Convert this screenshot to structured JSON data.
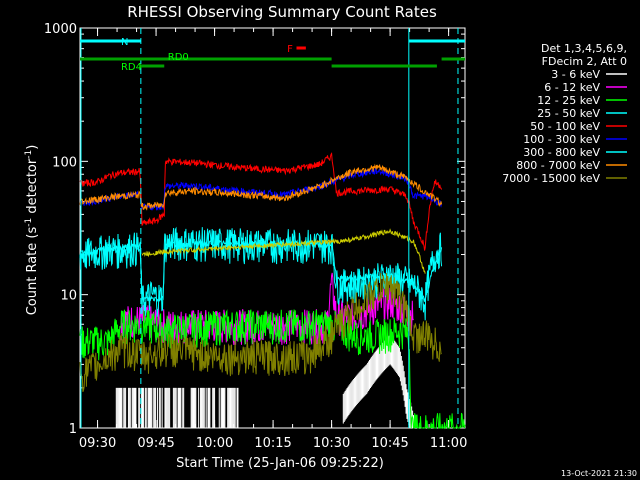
{
  "chart_data": {
    "type": "line",
    "title": "RHESSI Observing Summary Count Rates",
    "xlabel": "Start Time (25-Jan-06 09:25:22)",
    "ylabel_main": "Count Rate (s",
    "ylabel_sup1": "-1",
    "ylabel_mid": " detector",
    "ylabel_sup2": "-1",
    "ylabel_end": ")",
    "yscale": "log",
    "ylim": [
      1,
      1000
    ],
    "y_ticks": [
      {
        "value": 1,
        "label": "1"
      },
      {
        "value": 10,
        "label": "10"
      },
      {
        "value": 100,
        "label": "100"
      },
      {
        "value": 1000,
        "label": "1000"
      }
    ],
    "x_ticks": [
      {
        "value": "09:30",
        "label": "09:30"
      },
      {
        "value": "09:45",
        "label": "09:45"
      },
      {
        "value": "10:00",
        "label": "10:00"
      },
      {
        "value": "10:15",
        "label": "10:15"
      },
      {
        "value": "10:30",
        "label": "10:30"
      },
      {
        "value": "10:45",
        "label": "10:45"
      },
      {
        "value": "11:00",
        "label": "11:00"
      }
    ],
    "x_range_hours": [
      9.425,
      11.07
    ],
    "legend_header": [
      "Det 1,3,4,5,6,9,",
      "FDecim 2, Att 0"
    ],
    "series": [
      {
        "name": "3 - 6 keV",
        "color": "#ffffff",
        "band": [
          1,
          2
        ],
        "points": [
          [
            9.425,
            0
          ],
          [
            9.57,
            0
          ],
          [
            9.58,
            1.5
          ],
          [
            10.1,
            1.5
          ],
          [
            10.55,
            1.8
          ],
          [
            10.65,
            3
          ],
          [
            10.75,
            5
          ],
          [
            10.79,
            4
          ],
          [
            10.82,
            2
          ],
          [
            10.84,
            1.5
          ],
          [
            10.86,
            1
          ]
        ]
      },
      {
        "name": "6 - 12 keV",
        "color": "#ff00ff",
        "points": [
          [
            9.6,
            6.5
          ],
          [
            9.7,
            6.5
          ],
          [
            9.8,
            6
          ],
          [
            10.1,
            6
          ],
          [
            10.3,
            6
          ],
          [
            10.48,
            6
          ],
          [
            10.5,
            12
          ],
          [
            10.52,
            7
          ],
          [
            10.6,
            7
          ],
          [
            10.75,
            9
          ],
          [
            10.8,
            8
          ],
          [
            10.85,
            7
          ]
        ]
      },
      {
        "name": "12 - 25 keV",
        "color": "#00ff00",
        "points": [
          [
            9.425,
            4.5
          ],
          [
            9.55,
            4.5
          ],
          [
            9.6,
            6
          ],
          [
            9.7,
            6
          ],
          [
            9.8,
            5.5
          ],
          [
            10.1,
            6
          ],
          [
            10.5,
            6
          ],
          [
            10.6,
            5
          ],
          [
            10.7,
            5
          ],
          [
            10.8,
            5.5
          ],
          [
            10.83,
            5
          ],
          [
            10.84,
            1
          ],
          [
            11.07,
            1
          ]
        ]
      },
      {
        "name": "25 - 50 keV",
        "color": "#00ffff",
        "points": [
          [
            9.425,
            20
          ],
          [
            9.55,
            22
          ],
          [
            9.6,
            22
          ],
          [
            9.68,
            23
          ],
          [
            9.69,
            9
          ],
          [
            9.73,
            10
          ],
          [
            9.78,
            9.5
          ],
          [
            9.785,
            24
          ],
          [
            9.85,
            25
          ],
          [
            10.2,
            24
          ],
          [
            10.5,
            24
          ],
          [
            10.52,
            12
          ],
          [
            10.6,
            12
          ],
          [
            10.75,
            14
          ],
          [
            10.85,
            12
          ],
          [
            10.9,
            9
          ],
          [
            10.94,
            20
          ],
          [
            10.97,
            23
          ]
        ]
      },
      {
        "name": "50 - 100 keV",
        "color": "#ff0000",
        "points": [
          [
            9.425,
            68
          ],
          [
            9.5,
            70
          ],
          [
            9.55,
            78
          ],
          [
            9.6,
            82
          ],
          [
            9.68,
            84
          ],
          [
            9.69,
            34
          ],
          [
            9.75,
            36
          ],
          [
            9.785,
            40
          ],
          [
            9.79,
            100
          ],
          [
            9.9,
            98
          ],
          [
            10.1,
            90
          ],
          [
            10.3,
            85
          ],
          [
            10.45,
            95
          ],
          [
            10.5,
            110
          ],
          [
            10.52,
            58
          ],
          [
            10.6,
            60
          ],
          [
            10.75,
            62
          ],
          [
            10.82,
            55
          ],
          [
            10.85,
            35
          ],
          [
            10.9,
            22
          ],
          [
            10.94,
            70
          ],
          [
            10.97,
            65
          ]
        ]
      },
      {
        "name": "100 - 300 keV",
        "color": "#0000ff",
        "points": [
          [
            9.425,
            48
          ],
          [
            9.5,
            50
          ],
          [
            9.6,
            55
          ],
          [
            9.68,
            56
          ],
          [
            9.69,
            45
          ],
          [
            9.78,
            46
          ],
          [
            9.79,
            65
          ],
          [
            9.9,
            66
          ],
          [
            10.1,
            60
          ],
          [
            10.3,
            56
          ],
          [
            10.45,
            65
          ],
          [
            10.6,
            80
          ],
          [
            10.7,
            85
          ],
          [
            10.82,
            74
          ],
          [
            10.85,
            55
          ],
          [
            10.9,
            55
          ],
          [
            10.97,
            48
          ]
        ]
      },
      {
        "name": "300 - 800 keV",
        "color": "#00ffff",
        "points": [
          [
            9.425,
            20
          ],
          [
            9.55,
            22
          ],
          [
            9.68,
            23
          ],
          [
            9.69,
            9.2
          ],
          [
            9.78,
            9.5
          ],
          [
            9.79,
            24
          ],
          [
            10.1,
            24
          ],
          [
            10.5,
            24
          ],
          [
            10.52,
            13
          ],
          [
            10.75,
            14
          ],
          [
            10.85,
            12
          ],
          [
            10.9,
            9
          ],
          [
            10.97,
            22
          ]
        ]
      },
      {
        "name": "800 - 7000 keV",
        "color": "#ff8c00",
        "points": [
          [
            9.425,
            50
          ],
          [
            9.5,
            52
          ],
          [
            9.6,
            55
          ],
          [
            9.68,
            56
          ],
          [
            9.69,
            46
          ],
          [
            9.78,
            47
          ],
          [
            9.79,
            58
          ],
          [
            9.9,
            60
          ],
          [
            10.1,
            57
          ],
          [
            10.3,
            53
          ],
          [
            10.45,
            65
          ],
          [
            10.6,
            85
          ],
          [
            10.7,
            90
          ],
          [
            10.82,
            75
          ],
          [
            10.88,
            62
          ],
          [
            10.97,
            48
          ]
        ]
      },
      {
        "name": "7000 - 15000 keV",
        "color": "#808000",
        "points": [
          [
            9.425,
            2.5
          ],
          [
            9.5,
            3
          ],
          [
            9.6,
            4
          ],
          [
            9.7,
            3.5
          ],
          [
            9.8,
            4
          ],
          [
            10.0,
            3.5
          ],
          [
            10.2,
            3.5
          ],
          [
            10.4,
            3.5
          ],
          [
            10.5,
            5
          ],
          [
            10.6,
            8
          ],
          [
            10.7,
            11
          ],
          [
            10.75,
            12
          ],
          [
            10.8,
            9
          ],
          [
            10.85,
            5
          ],
          [
            10.9,
            5
          ],
          [
            10.97,
            4
          ]
        ]
      }
    ],
    "yellow_series": {
      "color": "#cccc00",
      "points": [
        [
          9.69,
          20
        ],
        [
          9.785,
          21
        ],
        [
          10.52,
          25
        ],
        [
          10.6,
          26
        ],
        [
          10.75,
          30
        ],
        [
          10.85,
          25
        ],
        [
          10.9,
          14
        ]
      ]
    },
    "annotations": [
      {
        "label": "N",
        "color": "#00ffff"
      },
      {
        "label": "RD0",
        "color": "#00ff00"
      },
      {
        "label": "RD4",
        "color": "#00ff00"
      },
      {
        "label": "F",
        "color": "#ff0000"
      }
    ],
    "timestamp": "13-Oct-2021 21:30"
  }
}
